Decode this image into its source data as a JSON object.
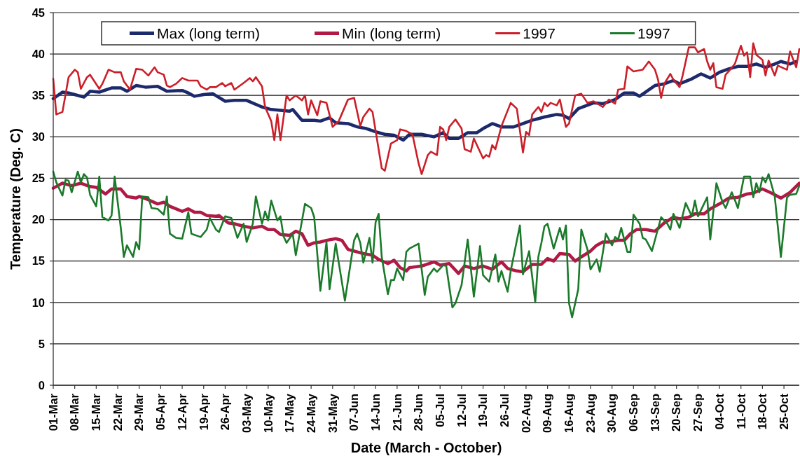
{
  "chart_data": {
    "type": "line",
    "xlabel": "Date (March - October)",
    "ylabel": "Temperature (Deg. C)",
    "xlim": [
      "--03-01",
      "--10-30"
    ],
    "ylim": [
      0,
      45
    ],
    "yticks": [
      0,
      5,
      10,
      15,
      20,
      25,
      30,
      35,
      40,
      45
    ],
    "xticks": [
      {
        "value": "--03-01",
        "label": "01-Mar"
      },
      {
        "value": "--03-08",
        "label": "08-Mar"
      },
      {
        "value": "--03-15",
        "label": "15-Mar"
      },
      {
        "value": "--03-22",
        "label": "22-Mar"
      },
      {
        "value": "--03-29",
        "label": "29-Mar"
      },
      {
        "value": "--04-05",
        "label": "05-Apr"
      },
      {
        "value": "--04-12",
        "label": "12-Apr"
      },
      {
        "value": "--04-19",
        "label": "19-Apr"
      },
      {
        "value": "--04-26",
        "label": "26-Apr"
      },
      {
        "value": "--05-03",
        "label": "03-May"
      },
      {
        "value": "--05-10",
        "label": "10-May"
      },
      {
        "value": "--05-17",
        "label": "17-May"
      },
      {
        "value": "--05-24",
        "label": "24-May"
      },
      {
        "value": "--05-31",
        "label": "31-May"
      },
      {
        "value": "--06-07",
        "label": "07-Jun"
      },
      {
        "value": "--06-14",
        "label": "14-Jun"
      },
      {
        "value": "--06-21",
        "label": "21-Jun"
      },
      {
        "value": "--06-28",
        "label": "28-Jun"
      },
      {
        "value": "--07-05",
        "label": "05-Jul"
      },
      {
        "value": "--07-12",
        "label": "12-Jul"
      },
      {
        "value": "--07-19",
        "label": "19-Jul"
      },
      {
        "value": "--07-26",
        "label": "26-Jul"
      },
      {
        "value": "--08-02",
        "label": "02-Aug"
      },
      {
        "value": "--08-09",
        "label": "09-Aug"
      },
      {
        "value": "--08-16",
        "label": "16-Aug"
      },
      {
        "value": "--08-23",
        "label": "23-Aug"
      },
      {
        "value": "--08-30",
        "label": "30-Aug"
      },
      {
        "value": "--09-06",
        "label": "06-Sep"
      },
      {
        "value": "--09-13",
        "label": "13-Sep"
      },
      {
        "value": "--09-20",
        "label": "20-Sep"
      },
      {
        "value": "--09-27",
        "label": "27-Sep"
      },
      {
        "value": "--10-04",
        "label": "04-Oct"
      },
      {
        "value": "--10-11",
        "label": "11-Oct"
      },
      {
        "value": "--10-18",
        "label": "18-Oct"
      },
      {
        "value": "--10-25",
        "label": "25-Oct"
      }
    ],
    "grid": "y",
    "legend": "top",
    "series": [
      {
        "name": "Max (long term)",
        "color": "#1c2a6b",
        "x": [
          "--03-01",
          "--03-04",
          "--03-06",
          "--03-09",
          "--03-11",
          "--03-13",
          "--03-16",
          "--03-20",
          "--03-23",
          "--03-25",
          "--03-28",
          "--03-31",
          "--04-04",
          "--04-07",
          "--04-12",
          "--04-14",
          "--04-16",
          "--04-19",
          "--04-22",
          "--04-26",
          "--04-29",
          "--05-03",
          "--05-08",
          "--05-11",
          "--05-14",
          "--05-17",
          "--05-18",
          "--05-21",
          "--05-25",
          "--05-27",
          "--05-30",
          "--06-01",
          "--06-05",
          "--06-08",
          "--06-11",
          "--06-14",
          "--06-17",
          "--06-20",
          "--06-23",
          "--06-25",
          "--06-29",
          "--07-03",
          "--07-06",
          "--07-08",
          "--07-11",
          "--07-14",
          "--07-17",
          "--07-19",
          "--07-22",
          "--07-25",
          "--07-29",
          "--08-01",
          "--08-04",
          "--08-08",
          "--08-12",
          "--08-14",
          "--08-16",
          "--08-19",
          "--08-24",
          "--08-27",
          "--08-31",
          "--09-03",
          "--09-06",
          "--09-08",
          "--09-13",
          "--09-16",
          "--09-19",
          "--09-21",
          "--09-25",
          "--09-28",
          "--10-01",
          "--10-04",
          "--10-07",
          "--10-10",
          "--10-13",
          "--10-16",
          "--10-19",
          "--10-22",
          "--10-24",
          "--10-27",
          "--10-29"
        ],
        "values": [
          34.6,
          35.4,
          35.3,
          35.0,
          34.8,
          35.5,
          35.4,
          35.9,
          35.9,
          35.5,
          36.2,
          36.0,
          36.1,
          35.5,
          35.6,
          35.3,
          34.9,
          35.1,
          35.2,
          34.3,
          34.4,
          34.4,
          33.6,
          33.3,
          33.2,
          33.1,
          33.3,
          32.0,
          32.0,
          31.9,
          32.3,
          31.7,
          31.6,
          31.2,
          31.0,
          30.6,
          30.3,
          30.2,
          29.6,
          30.3,
          30.3,
          30.0,
          30.5,
          29.8,
          29.8,
          30.5,
          30.5,
          31.0,
          31.6,
          31.2,
          31.2,
          31.6,
          32.0,
          32.4,
          32.7,
          32.6,
          32.2,
          33.4,
          34.1,
          34.0,
          34.5,
          35.3,
          35.3,
          34.9,
          36.2,
          36.4,
          36.8,
          36.4,
          37.0,
          37.6,
          37.1,
          37.8,
          38.2,
          38.5,
          38.5,
          38.8,
          38.4,
          38.8,
          39.1,
          38.8,
          39.1
        ]
      },
      {
        "name": "Min (long term)",
        "color": "#b01a45",
        "x": [
          "--03-01",
          "--03-04",
          "--03-07",
          "--03-10",
          "--03-13",
          "--03-15",
          "--03-18",
          "--03-20",
          "--03-23",
          "--03-25",
          "--03-28",
          "--03-29",
          "--04-01",
          "--04-04",
          "--04-06",
          "--04-08",
          "--04-10",
          "--04-12",
          "--04-14",
          "--04-16",
          "--04-18",
          "--04-20",
          "--04-23",
          "--04-24",
          "--04-27",
          "--04-29",
          "--05-02",
          "--05-05",
          "--05-08",
          "--05-10",
          "--05-12",
          "--05-14",
          "--05-17",
          "--05-19",
          "--05-21",
          "--05-23",
          "--05-25",
          "--05-27",
          "--05-29",
          "--06-01",
          "--06-03",
          "--06-05",
          "--06-08",
          "--06-10",
          "--06-13",
          "--06-15",
          "--06-18",
          "--06-20",
          "--06-22",
          "--06-24",
          "--06-25",
          "--06-29",
          "--07-03",
          "--07-05",
          "--07-08",
          "--07-11",
          "--07-13",
          "--07-16",
          "--07-19",
          "--07-22",
          "--07-25",
          "--07-27",
          "--07-30",
          "--08-01",
          "--08-04",
          "--08-07",
          "--08-09",
          "--08-11",
          "--08-13",
          "--08-16",
          "--08-18",
          "--08-20",
          "--08-23",
          "--08-25",
          "--08-27",
          "--08-29",
          "--09-01",
          "--09-03",
          "--09-05",
          "--09-07",
          "--09-10",
          "--09-13",
          "--09-16",
          "--09-19",
          "--09-21",
          "--09-24",
          "--09-26",
          "--09-29",
          "--10-01",
          "--10-04",
          "--10-07",
          "--10-10",
          "--10-13",
          "--10-15",
          "--10-18",
          "--10-21",
          "--10-24",
          "--10-27",
          "--10-30"
        ],
        "values": [
          23.8,
          24.4,
          24.1,
          24.4,
          24.0,
          23.9,
          23.1,
          23.7,
          23.7,
          22.8,
          22.6,
          22.8,
          22.4,
          21.9,
          22.1,
          21.6,
          21.3,
          21.0,
          21.3,
          20.9,
          20.9,
          20.5,
          20.4,
          20.5,
          19.6,
          19.5,
          19.2,
          19.0,
          19.2,
          18.8,
          18.8,
          18.2,
          18.1,
          18.6,
          18.3,
          16.9,
          17.2,
          17.3,
          17.5,
          17.7,
          17.5,
          16.4,
          16.1,
          15.9,
          15.7,
          15.2,
          14.7,
          15.1,
          14.2,
          13.8,
          14.2,
          14.4,
          14.9,
          14.5,
          14.7,
          13.5,
          14.4,
          14.1,
          14.4,
          14.0,
          14.9,
          14.1,
          13.8,
          13.7,
          14.6,
          14.6,
          15.3,
          15.0,
          15.9,
          15.8,
          15.0,
          15.5,
          16.2,
          16.9,
          17.3,
          17.3,
          17.5,
          17.5,
          18.3,
          18.8,
          18.8,
          18.6,
          19.6,
          20.3,
          20.1,
          20.3,
          20.7,
          20.7,
          21.3,
          21.9,
          22.6,
          22.7,
          23.1,
          23.2,
          23.7,
          23.2,
          22.6,
          23.3,
          24.4
        ]
      },
      {
        "name": "1997",
        "color": "#cc1e28",
        "x": [
          "--03-01",
          "--03-02",
          "--03-04",
          "--03-06",
          "--03-08",
          "--03-09",
          "--03-10",
          "--03-12",
          "--03-13",
          "--03-16",
          "--03-17",
          "--03-19",
          "--03-21",
          "--03-23",
          "--03-24",
          "--03-26",
          "--03-28",
          "--03-30",
          "--04-01",
          "--04-03",
          "--04-04",
          "--04-06",
          "--04-07",
          "--04-08",
          "--04-10",
          "--04-12",
          "--04-14",
          "--04-17",
          "--04-18",
          "--04-20",
          "--04-21",
          "--04-23",
          "--04-25",
          "--04-26",
          "--04-28",
          "--04-29",
          "--05-02",
          "--05-04",
          "--05-05",
          "--05-06",
          "--05-08",
          "--05-09",
          "--05-11",
          "--05-12",
          "--05-13",
          "--05-14",
          "--05-16",
          "--05-17",
          "--05-19",
          "--05-21",
          "--05-22",
          "--05-23",
          "--05-24",
          "--05-26",
          "--05-27",
          "--05-29",
          "--05-31",
          "--06-02",
          "--06-05",
          "--06-07",
          "--06-09",
          "--06-10",
          "--06-12",
          "--06-13",
          "--06-16",
          "--06-17",
          "--06-19",
          "--06-21",
          "--06-22",
          "--06-24",
          "--06-26",
          "--06-28",
          "--06-29",
          "--07-01",
          "--07-02",
          "--07-04",
          "--07-05",
          "--07-06",
          "--07-07",
          "--07-08",
          "--07-10",
          "--07-12",
          "--07-13",
          "--07-15",
          "--07-16",
          "--07-19",
          "--07-20",
          "--07-21",
          "--07-22",
          "--07-23",
          "--07-25",
          "--07-28",
          "--07-30",
          "--08-01",
          "--08-02",
          "--08-03",
          "--08-04",
          "--08-06",
          "--08-07",
          "--08-08",
          "--08-09",
          "--08-10",
          "--08-12",
          "--08-13",
          "--08-15",
          "--08-16",
          "--08-18",
          "--08-20",
          "--08-22",
          "--08-24",
          "--08-27",
          "--08-29",
          "--08-31",
          "--09-01",
          "--09-03",
          "--09-04",
          "--09-06",
          "--09-09",
          "--09-11",
          "--09-13",
          "--09-14",
          "--09-15",
          "--09-16",
          "--09-18",
          "--09-19",
          "--09-21",
          "--09-22",
          "--09-24",
          "--09-26",
          "--09-27",
          "--09-29",
          "--09-30",
          "--10-01",
          "--10-02",
          "--10-03",
          "--10-05",
          "--10-06",
          "--10-07",
          "--10-09",
          "--10-11",
          "--10-12",
          "--10-13",
          "--10-14",
          "--10-15",
          "--10-16",
          "--10-18",
          "--10-19",
          "--10-20",
          "--10-22",
          "--10-23",
          "--10-26",
          "--10-27",
          "--10-29",
          "--10-30"
        ],
        "values": [
          37.0,
          32.7,
          33.0,
          37.2,
          38.1,
          37.8,
          35.8,
          37.2,
          37.5,
          35.8,
          36.4,
          38.1,
          37.8,
          37.8,
          36.7,
          35.7,
          38.2,
          38.1,
          37.4,
          38.4,
          37.8,
          37.5,
          36.2,
          36.0,
          36.4,
          37.1,
          36.8,
          36.8,
          36.1,
          35.7,
          36.0,
          36.0,
          36.5,
          36.1,
          36.5,
          35.7,
          36.5,
          37.1,
          36.7,
          37.2,
          36.1,
          33.6,
          31.9,
          29.6,
          32.7,
          29.6,
          35.0,
          34.4,
          35.0,
          34.4,
          35.0,
          32.7,
          34.4,
          32.6,
          34.3,
          34.1,
          31.2,
          31.9,
          34.5,
          34.7,
          31.3,
          32.4,
          33.4,
          33.0,
          26.2,
          25.9,
          29.2,
          29.6,
          30.9,
          30.7,
          30.3,
          26.8,
          25.5,
          27.8,
          28.2,
          27.8,
          31.2,
          30.9,
          29.6,
          31.2,
          32.1,
          31.0,
          28.5,
          28.2,
          29.8,
          27.4,
          27.8,
          27.6,
          29.0,
          28.5,
          31.3,
          34.1,
          33.4,
          28.1,
          30.6,
          30.2,
          32.7,
          33.6,
          33.0,
          34.1,
          33.7,
          34.1,
          33.8,
          34.5,
          31.2,
          31.6,
          35.0,
          35.2,
          34.1,
          34.3,
          33.6,
          34.5,
          34.0,
          35.7,
          35.8,
          38.5,
          37.9,
          38.1,
          39.1,
          38.1,
          36.9,
          34.7,
          36.4,
          37.6,
          36.9,
          36.0,
          37.4,
          40.8,
          40.8,
          40.2,
          40.6,
          39.1,
          38.1,
          38.9,
          36.0,
          35.8,
          37.5,
          37.9,
          38.8,
          41.0,
          39.8,
          40.2,
          37.2,
          41.3,
          39.9,
          39.3,
          37.4,
          39.2,
          37.4,
          38.6,
          38.1,
          40.3,
          38.4,
          40.6
        ]
      },
      {
        "name": "1997",
        "color": "#1a7a2a",
        "x": [
          "--03-01",
          "--03-02",
          "--03-04",
          "--03-05",
          "--03-06",
          "--03-07",
          "--03-09",
          "--03-10",
          "--03-11",
          "--03-12",
          "--03-13",
          "--03-15",
          "--03-16",
          "--03-17",
          "--03-19",
          "--03-20",
          "--03-21",
          "--03-23",
          "--03-24",
          "--03-25",
          "--03-27",
          "--03-28",
          "--03-29",
          "--03-30",
          "--04-01",
          "--04-02",
          "--04-04",
          "--04-06",
          "--04-07",
          "--04-08",
          "--04-10",
          "--04-12",
          "--04-14",
          "--04-15",
          "--04-18",
          "--04-20",
          "--04-21",
          "--04-23",
          "--04-24",
          "--04-26",
          "--04-28",
          "--04-30",
          "--05-02",
          "--05-03",
          "--05-05",
          "--05-06",
          "--05-08",
          "--05-09",
          "--05-10",
          "--05-11",
          "--05-13",
          "--05-14",
          "--05-15",
          "--05-16",
          "--05-18",
          "--05-19",
          "--05-22",
          "--05-24",
          "--05-25",
          "--05-27",
          "--05-29",
          "--05-30",
          "--06-01",
          "--06-04",
          "--06-06",
          "--06-07",
          "--06-08",
          "--06-09",
          "--06-10",
          "--06-12",
          "--06-13",
          "--06-14",
          "--06-15",
          "--06-16",
          "--06-18",
          "--06-19",
          "--06-20",
          "--06-21",
          "--06-23",
          "--06-24",
          "--06-25",
          "--06-28",
          "--06-30",
          "--07-01",
          "--07-03",
          "--07-04",
          "--07-06",
          "--07-07",
          "--07-09",
          "--07-10",
          "--07-12",
          "--07-14",
          "--07-16",
          "--07-18",
          "--07-19",
          "--07-21",
          "--07-23",
          "--07-24",
          "--07-25",
          "--07-27",
          "--07-28",
          "--07-31",
          "--08-01",
          "--08-03",
          "--08-05",
          "--08-06",
          "--08-07",
          "--08-08",
          "--08-09",
          "--08-11",
          "--08-13",
          "--08-14",
          "--08-15",
          "--08-16",
          "--08-17",
          "--08-19",
          "--08-20",
          "--08-22",
          "--08-23",
          "--08-25",
          "--08-26",
          "--08-28",
          "--08-30",
          "--08-31",
          "--09-01",
          "--09-02",
          "--09-04",
          "--09-05",
          "--09-06",
          "--09-08",
          "--09-09",
          "--09-10",
          "--09-12",
          "--09-15",
          "--09-17",
          "--09-18",
          "--09-19",
          "--09-21",
          "--09-23",
          "--09-25",
          "--09-26",
          "--09-27",
          "--09-30",
          "--10-01",
          "--10-03",
          "--10-05",
          "--10-06",
          "--10-08",
          "--10-09",
          "--10-10",
          "--10-12",
          "--10-14",
          "--10-15",
          "--10-16",
          "--10-17",
          "--10-18",
          "--10-19",
          "--10-20",
          "--10-22",
          "--10-24",
          "--10-26",
          "--10-27",
          "--10-29",
          "--10-30"
        ],
        "values": [
          25.8,
          24.5,
          22.9,
          24.8,
          24.7,
          23.3,
          25.8,
          24.5,
          25.5,
          25.1,
          23.0,
          21.6,
          25.2,
          20.3,
          19.9,
          20.5,
          25.2,
          19.0,
          15.5,
          16.9,
          15.5,
          17.3,
          16.4,
          22.8,
          22.7,
          21.4,
          21.3,
          20.6,
          22.8,
          18.3,
          17.8,
          17.7,
          20.9,
          18.3,
          17.9,
          18.8,
          20.2,
          18.8,
          18.5,
          20.4,
          20.2,
          17.8,
          19.5,
          17.3,
          19.5,
          22.8,
          19.5,
          21.0,
          19.9,
          22.3,
          19.9,
          20.4,
          18.0,
          17.2,
          18.3,
          15.7,
          21.9,
          21.4,
          20.3,
          11.4,
          17.3,
          11.6,
          17.1,
          10.2,
          15.1,
          17.5,
          18.3,
          17.2,
          14.8,
          17.8,
          14.8,
          19.7,
          20.7,
          15.5,
          11.0,
          12.7,
          12.7,
          14.1,
          12.7,
          16.1,
          16.5,
          17.1,
          10.9,
          13.1,
          14.1,
          13.7,
          14.5,
          14.4,
          9.4,
          9.9,
          12.1,
          17.6,
          10.7,
          16.8,
          13.3,
          12.5,
          15.8,
          12.5,
          13.8,
          11.3,
          13.8,
          19.3,
          13.4,
          16.2,
          10.0,
          15.5,
          17.2,
          19.2,
          19.5,
          16.5,
          19.0,
          17.6,
          19.3,
          9.9,
          8.2,
          11.6,
          18.8,
          16.4,
          14.0,
          15.2,
          13.7,
          18.3,
          16.9,
          17.9,
          17.6,
          19.0,
          16.1,
          16.1,
          20.6,
          19.5,
          17.8,
          17.6,
          16.2,
          20.3,
          19.5,
          18.8,
          20.7,
          19.0,
          22.0,
          20.4,
          22.3,
          20.4,
          22.7,
          17.6,
          24.4,
          22.1,
          21.4,
          23.3,
          22.4,
          21.4,
          25.2,
          25.2,
          22.7,
          24.4,
          23.3,
          25.1,
          24.5,
          25.5,
          22.8,
          15.5,
          22.7,
          23.0,
          23.1,
          24.1
        ]
      }
    ]
  }
}
